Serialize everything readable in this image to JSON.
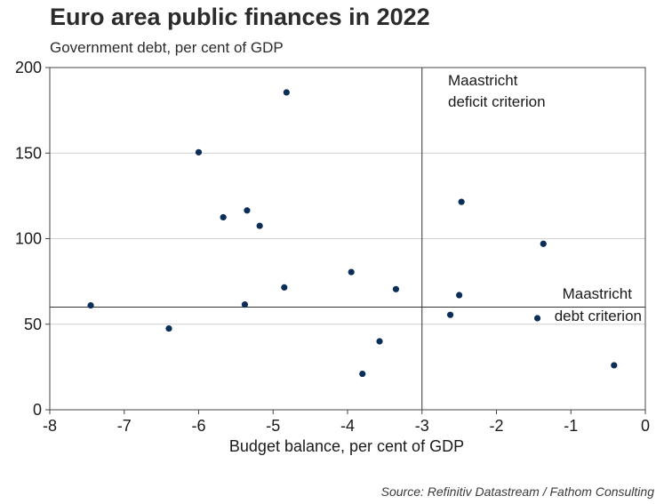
{
  "title": "Euro area public finances in 2022",
  "subtitle": "Government debt, per cent of GDP",
  "source": "Source: Refinitiv Datastream / Fathom Consulting",
  "chart_data": {
    "type": "scatter",
    "title": "Euro area public finances in 2022",
    "xlabel": "Budget balance, per cent of GDP",
    "ylabel": "",
    "xlim": [
      -8,
      0
    ],
    "ylim": [
      0,
      200
    ],
    "xticks": [
      -8,
      -7,
      -6,
      -5,
      -4,
      -3,
      -2,
      -1,
      0
    ],
    "xtick_labels": [
      "-8",
      "-7",
      "-6",
      "-5",
      "-4",
      "-3",
      "-2",
      "-1",
      "0"
    ],
    "yticks": [
      0,
      50,
      100,
      150,
      200
    ],
    "ytick_labels": [
      "0",
      "50",
      "100",
      "150",
      "200"
    ],
    "grid": "horizontal",
    "marker_color": "#0b2e59",
    "points": [
      {
        "x": -7.45,
        "y": 61
      },
      {
        "x": -6.4,
        "y": 47.5
      },
      {
        "x": -6.0,
        "y": 150.5
      },
      {
        "x": -5.67,
        "y": 112.5
      },
      {
        "x": -5.35,
        "y": 116.5
      },
      {
        "x": -5.38,
        "y": 61.5
      },
      {
        "x": -5.18,
        "y": 107.5
      },
      {
        "x": -4.82,
        "y": 185.5
      },
      {
        "x": -4.85,
        "y": 71.5
      },
      {
        "x": -3.95,
        "y": 80.5
      },
      {
        "x": -3.8,
        "y": 21
      },
      {
        "x": -3.57,
        "y": 40
      },
      {
        "x": -3.35,
        "y": 70.5
      },
      {
        "x": -2.62,
        "y": 55.5
      },
      {
        "x": -2.5,
        "y": 67
      },
      {
        "x": -2.47,
        "y": 121.5
      },
      {
        "x": -1.45,
        "y": 53.5
      },
      {
        "x": -1.37,
        "y": 97
      },
      {
        "x": -0.42,
        "y": 26
      }
    ],
    "reference_lines": [
      {
        "axis": "x",
        "value": -3,
        "label_line1": "Maastricht",
        "label_line2": "deficit criterion"
      },
      {
        "axis": "y",
        "value": 60,
        "label_line1": "Maastricht",
        "label_line2": "debt criterion"
      }
    ]
  }
}
